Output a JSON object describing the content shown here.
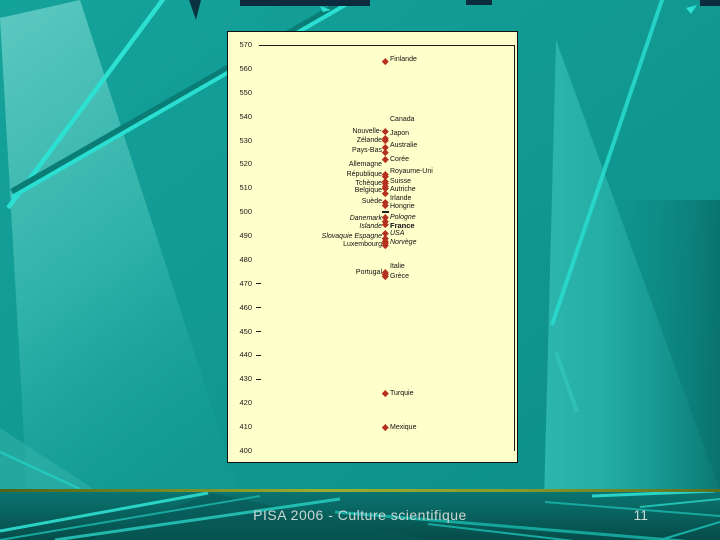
{
  "slide": {
    "footer": "PISA 2006 - Culture scientifique",
    "page_number": "11",
    "colors": {
      "background_teal": "#0f9a93",
      "background_band_light": "#55c4bc",
      "streak_cyan": "#2ce0d2",
      "top_strip_navy": "#0c2b3f",
      "bottom_area_dark": "#075350",
      "footer_line_olive": "#9cad2e",
      "footer_text": "#ccd8d3",
      "chart_background": "#ffffcc",
      "marker_red": "#b5301f",
      "chart_text": "#111111"
    }
  },
  "chart_data": {
    "type": "scatter",
    "title": "",
    "xlabel": "",
    "ylabel": "",
    "ylim": [
      400,
      570
    ],
    "yticks": [
      570,
      560,
      550,
      540,
      530,
      520,
      510,
      500,
      490,
      480,
      470,
      460,
      450,
      440,
      430,
      420,
      410,
      400
    ],
    "tick_dash_values": [
      470,
      460,
      450,
      440,
      430
    ],
    "grid": false,
    "axis_frame": "top-and-right",
    "legend": "none",
    "marker": "diamond",
    "marker_color": "#b5301f",
    "points": [
      {
        "country": "Finlande",
        "value": 563,
        "marker": "diamond"
      },
      {
        "country": "Canada",
        "value": 534,
        "marker": "diamond"
      },
      {
        "country": "Japon",
        "value": 531,
        "marker": "diamond"
      },
      {
        "country": "Nouvelle-Zélande",
        "value": 530,
        "marker": "diamond"
      },
      {
        "country": "Australie",
        "value": 527,
        "marker": "diamond"
      },
      {
        "country": "Pays-Bas",
        "value": 525,
        "marker": "diamond"
      },
      {
        "country": "Corée",
        "value": 522,
        "marker": "diamond"
      },
      {
        "country": "Allemagne",
        "value": 516,
        "marker": "diamond"
      },
      {
        "country": "Royaume-Uni",
        "value": 515,
        "marker": "diamond"
      },
      {
        "country": "République Tchèque",
        "value": 513,
        "marker": "diamond"
      },
      {
        "country": "Suisse",
        "value": 512,
        "marker": "diamond"
      },
      {
        "country": "Autriche",
        "value": 511,
        "marker": "diamond"
      },
      {
        "country": "Belgique",
        "value": 510,
        "marker": "diamond"
      },
      {
        "country": "Irlande",
        "value": 508,
        "marker": "diamond"
      },
      {
        "country": "Hongrie",
        "value": 504,
        "marker": "diamond"
      },
      {
        "country": "Suède",
        "value": 503,
        "marker": "diamond"
      },
      {
        "country": "",
        "value": 500,
        "marker": "dash"
      },
      {
        "country": "Pologne",
        "value": 498,
        "marker": "diamond"
      },
      {
        "country": "Danemark",
        "value": 496,
        "marker": "diamond"
      },
      {
        "country": "France",
        "value": 495,
        "marker": "diamond"
      },
      {
        "country": "Islande",
        "value": 491,
        "marker": "diamond"
      },
      {
        "country": "USA",
        "value": 489,
        "marker": "diamond"
      },
      {
        "country": "Slovaquie",
        "value": 488,
        "marker": "diamond"
      },
      {
        "country": "Espagne",
        "value": 488,
        "marker": "diamond"
      },
      {
        "country": "Norvège",
        "value": 487,
        "marker": "diamond"
      },
      {
        "country": "Luxembourg",
        "value": 486,
        "marker": "diamond"
      },
      {
        "country": "Italie",
        "value": 475,
        "marker": "diamond"
      },
      {
        "country": "Portugal",
        "value": 474,
        "marker": "diamond"
      },
      {
        "country": "Grèce",
        "value": 473,
        "marker": "diamond"
      },
      {
        "country": "Turquie",
        "value": 424,
        "marker": "diamond"
      },
      {
        "country": "Mexique",
        "value": 410,
        "marker": "diamond"
      }
    ],
    "labels": [
      {
        "text": "Finlande",
        "side": "right",
        "at": 563.5,
        "bold": false,
        "italic": false
      },
      {
        "text": "Canada",
        "side": "right",
        "at": 538.5,
        "bold": false,
        "italic": false
      },
      {
        "text": "Japon",
        "side": "right",
        "at": 532.5,
        "bold": false,
        "italic": false
      },
      {
        "text": "Australie",
        "side": "right",
        "at": 527.5,
        "bold": false,
        "italic": false
      },
      {
        "text": "Corée",
        "side": "right",
        "at": 521.5,
        "bold": false,
        "italic": false
      },
      {
        "text": "Royaume-Uni",
        "side": "right",
        "at": 516.5,
        "bold": false,
        "italic": false
      },
      {
        "text": "Suisse",
        "side": "right",
        "at": 512.5,
        "bold": false,
        "italic": false
      },
      {
        "text": "Autriche",
        "side": "right",
        "at": 509.0,
        "bold": false,
        "italic": false
      },
      {
        "text": "Irlande",
        "side": "right",
        "at": 505.5,
        "bold": false,
        "italic": false
      },
      {
        "text": "Hongrie",
        "side": "right",
        "at": 502.0,
        "bold": false,
        "italic": false
      },
      {
        "text": "Pologne",
        "side": "right",
        "at": 497.5,
        "bold": false,
        "italic": true
      },
      {
        "text": "France",
        "side": "right",
        "at": 494.0,
        "bold": true,
        "italic": false
      },
      {
        "text": "USA",
        "side": "right",
        "at": 490.5,
        "bold": false,
        "italic": true
      },
      {
        "text": "Norvège",
        "side": "right",
        "at": 487.0,
        "bold": false,
        "italic": true
      },
      {
        "text": "Italie",
        "side": "right",
        "at": 477.0,
        "bold": false,
        "italic": false
      },
      {
        "text": "Grèce",
        "side": "right",
        "at": 472.5,
        "bold": false,
        "italic": false
      },
      {
        "text": "Turquie",
        "side": "right",
        "at": 423.5,
        "bold": false,
        "italic": false
      },
      {
        "text": "Mexique",
        "side": "right",
        "at": 409.5,
        "bold": false,
        "italic": false
      },
      {
        "text": "Nouvelle-",
        "side": "left",
        "at": 533.5,
        "bold": false,
        "italic": false
      },
      {
        "text": "Zélande",
        "side": "left",
        "at": 529.5,
        "bold": false,
        "italic": false
      },
      {
        "text": "Pays-Bas",
        "side": "left",
        "at": 525.5,
        "bold": false,
        "italic": false
      },
      {
        "text": "Allemagne",
        "side": "left",
        "at": 519.5,
        "bold": false,
        "italic": false
      },
      {
        "text": "République",
        "side": "left",
        "at": 515.5,
        "bold": false,
        "italic": false
      },
      {
        "text": "Tchèque",
        "side": "left",
        "at": 511.5,
        "bold": false,
        "italic": false
      },
      {
        "text": "Belgique",
        "side": "left",
        "at": 508.5,
        "bold": false,
        "italic": false
      },
      {
        "text": "Suède",
        "side": "left",
        "at": 504.0,
        "bold": false,
        "italic": false
      },
      {
        "text": "Danemark",
        "side": "left",
        "at": 497.0,
        "bold": false,
        "italic": true
      },
      {
        "text": "Islande",
        "side": "left",
        "at": 493.5,
        "bold": false,
        "italic": true
      },
      {
        "text": "Slovaquie Espagne",
        "side": "left",
        "at": 489.5,
        "bold": false,
        "italic": true
      },
      {
        "text": "Luxembourg",
        "side": "left",
        "at": 486.0,
        "bold": false,
        "italic": false
      },
      {
        "text": "Portugal",
        "side": "left",
        "at": 474.5,
        "bold": false,
        "italic": false
      }
    ]
  }
}
